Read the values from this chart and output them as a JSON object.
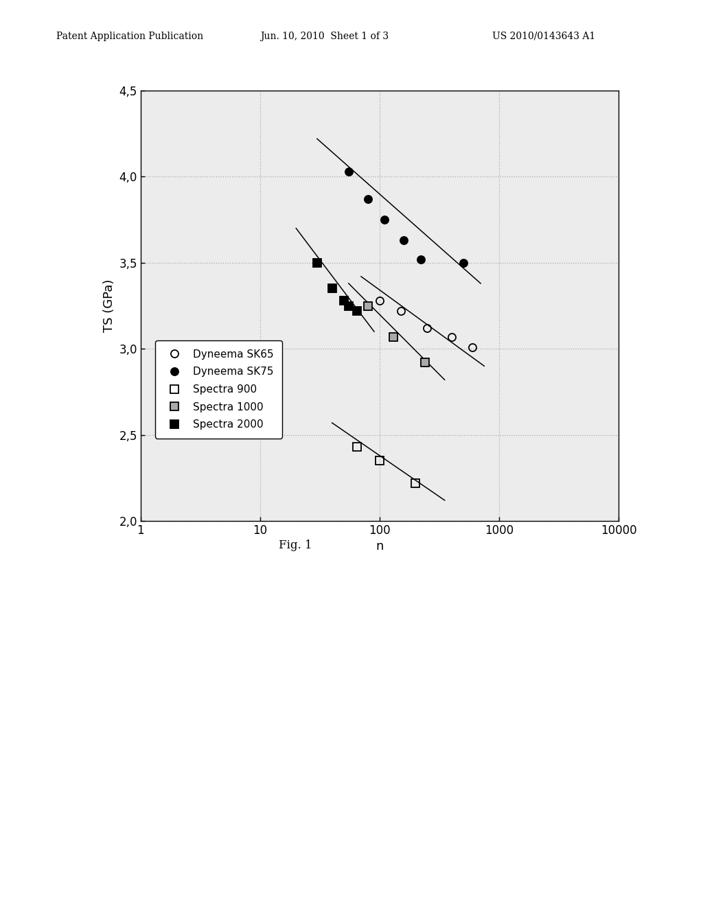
{
  "title": "",
  "xlabel": "n",
  "ylabel": "TS (GPa)",
  "figcaption": "Fig. 1",
  "header_left": "Patent Application Publication",
  "header_center": "Jun. 10, 2010  Sheet 1 of 3",
  "header_right": "US 2010/0143643 A1",
  "xlim": [
    1,
    10000
  ],
  "ylim": [
    2.0,
    4.5
  ],
  "yticks": [
    2.0,
    2.5,
    3.0,
    3.5,
    4.0,
    4.5
  ],
  "ytick_labels": [
    "2,0",
    "2,5",
    "3,0",
    "3,5",
    "4,0",
    "4,5"
  ],
  "xticks": [
    1,
    10,
    100,
    1000,
    10000
  ],
  "xtick_labels": [
    "1",
    "10",
    "100",
    "1000",
    "10000"
  ],
  "series": [
    {
      "label": "Dyneema SK65",
      "marker": "o",
      "fillstyle": "none",
      "color": "black",
      "markersize": 8,
      "x": [
        100,
        150,
        250,
        400,
        600
      ],
      "y": [
        3.28,
        3.22,
        3.12,
        3.07,
        3.01
      ],
      "fit_x": [
        70,
        750
      ],
      "fit_y": [
        3.42,
        2.9
      ]
    },
    {
      "label": "Dyneema SK75",
      "marker": "o",
      "fillstyle": "full",
      "color": "black",
      "markersize": 8,
      "x": [
        55,
        80,
        110,
        160,
        220,
        500
      ],
      "y": [
        4.03,
        3.87,
        3.75,
        3.63,
        3.52,
        3.5
      ],
      "fit_x": [
        30,
        700
      ],
      "fit_y": [
        4.22,
        3.38
      ]
    },
    {
      "label": "Spectra 900",
      "marker": "s",
      "fillstyle": "none",
      "color": "black",
      "markersize": 8,
      "x": [
        65,
        100,
        200
      ],
      "y": [
        2.43,
        2.35,
        2.22
      ],
      "fit_x": [
        40,
        350
      ],
      "fit_y": [
        2.57,
        2.12
      ]
    },
    {
      "label": "Spectra 1000",
      "marker": "s",
      "fillstyle": "gray",
      "color": "black",
      "markersize": 8,
      "x": [
        80,
        130,
        240
      ],
      "y": [
        3.25,
        3.07,
        2.92
      ],
      "fit_x": [
        55,
        350
      ],
      "fit_y": [
        3.38,
        2.82
      ]
    },
    {
      "label": "Spectra 2000",
      "marker": "s",
      "fillstyle": "full",
      "color": "black",
      "markersize": 8,
      "x": [
        30,
        40,
        50,
        55,
        65
      ],
      "y": [
        3.5,
        3.35,
        3.28,
        3.25,
        3.22
      ],
      "fit_x": [
        20,
        90
      ],
      "fit_y": [
        3.7,
        3.1
      ]
    }
  ],
  "background_color": "#ececec",
  "grid_color": "#aaaaaa",
  "grid_style": "dotted"
}
